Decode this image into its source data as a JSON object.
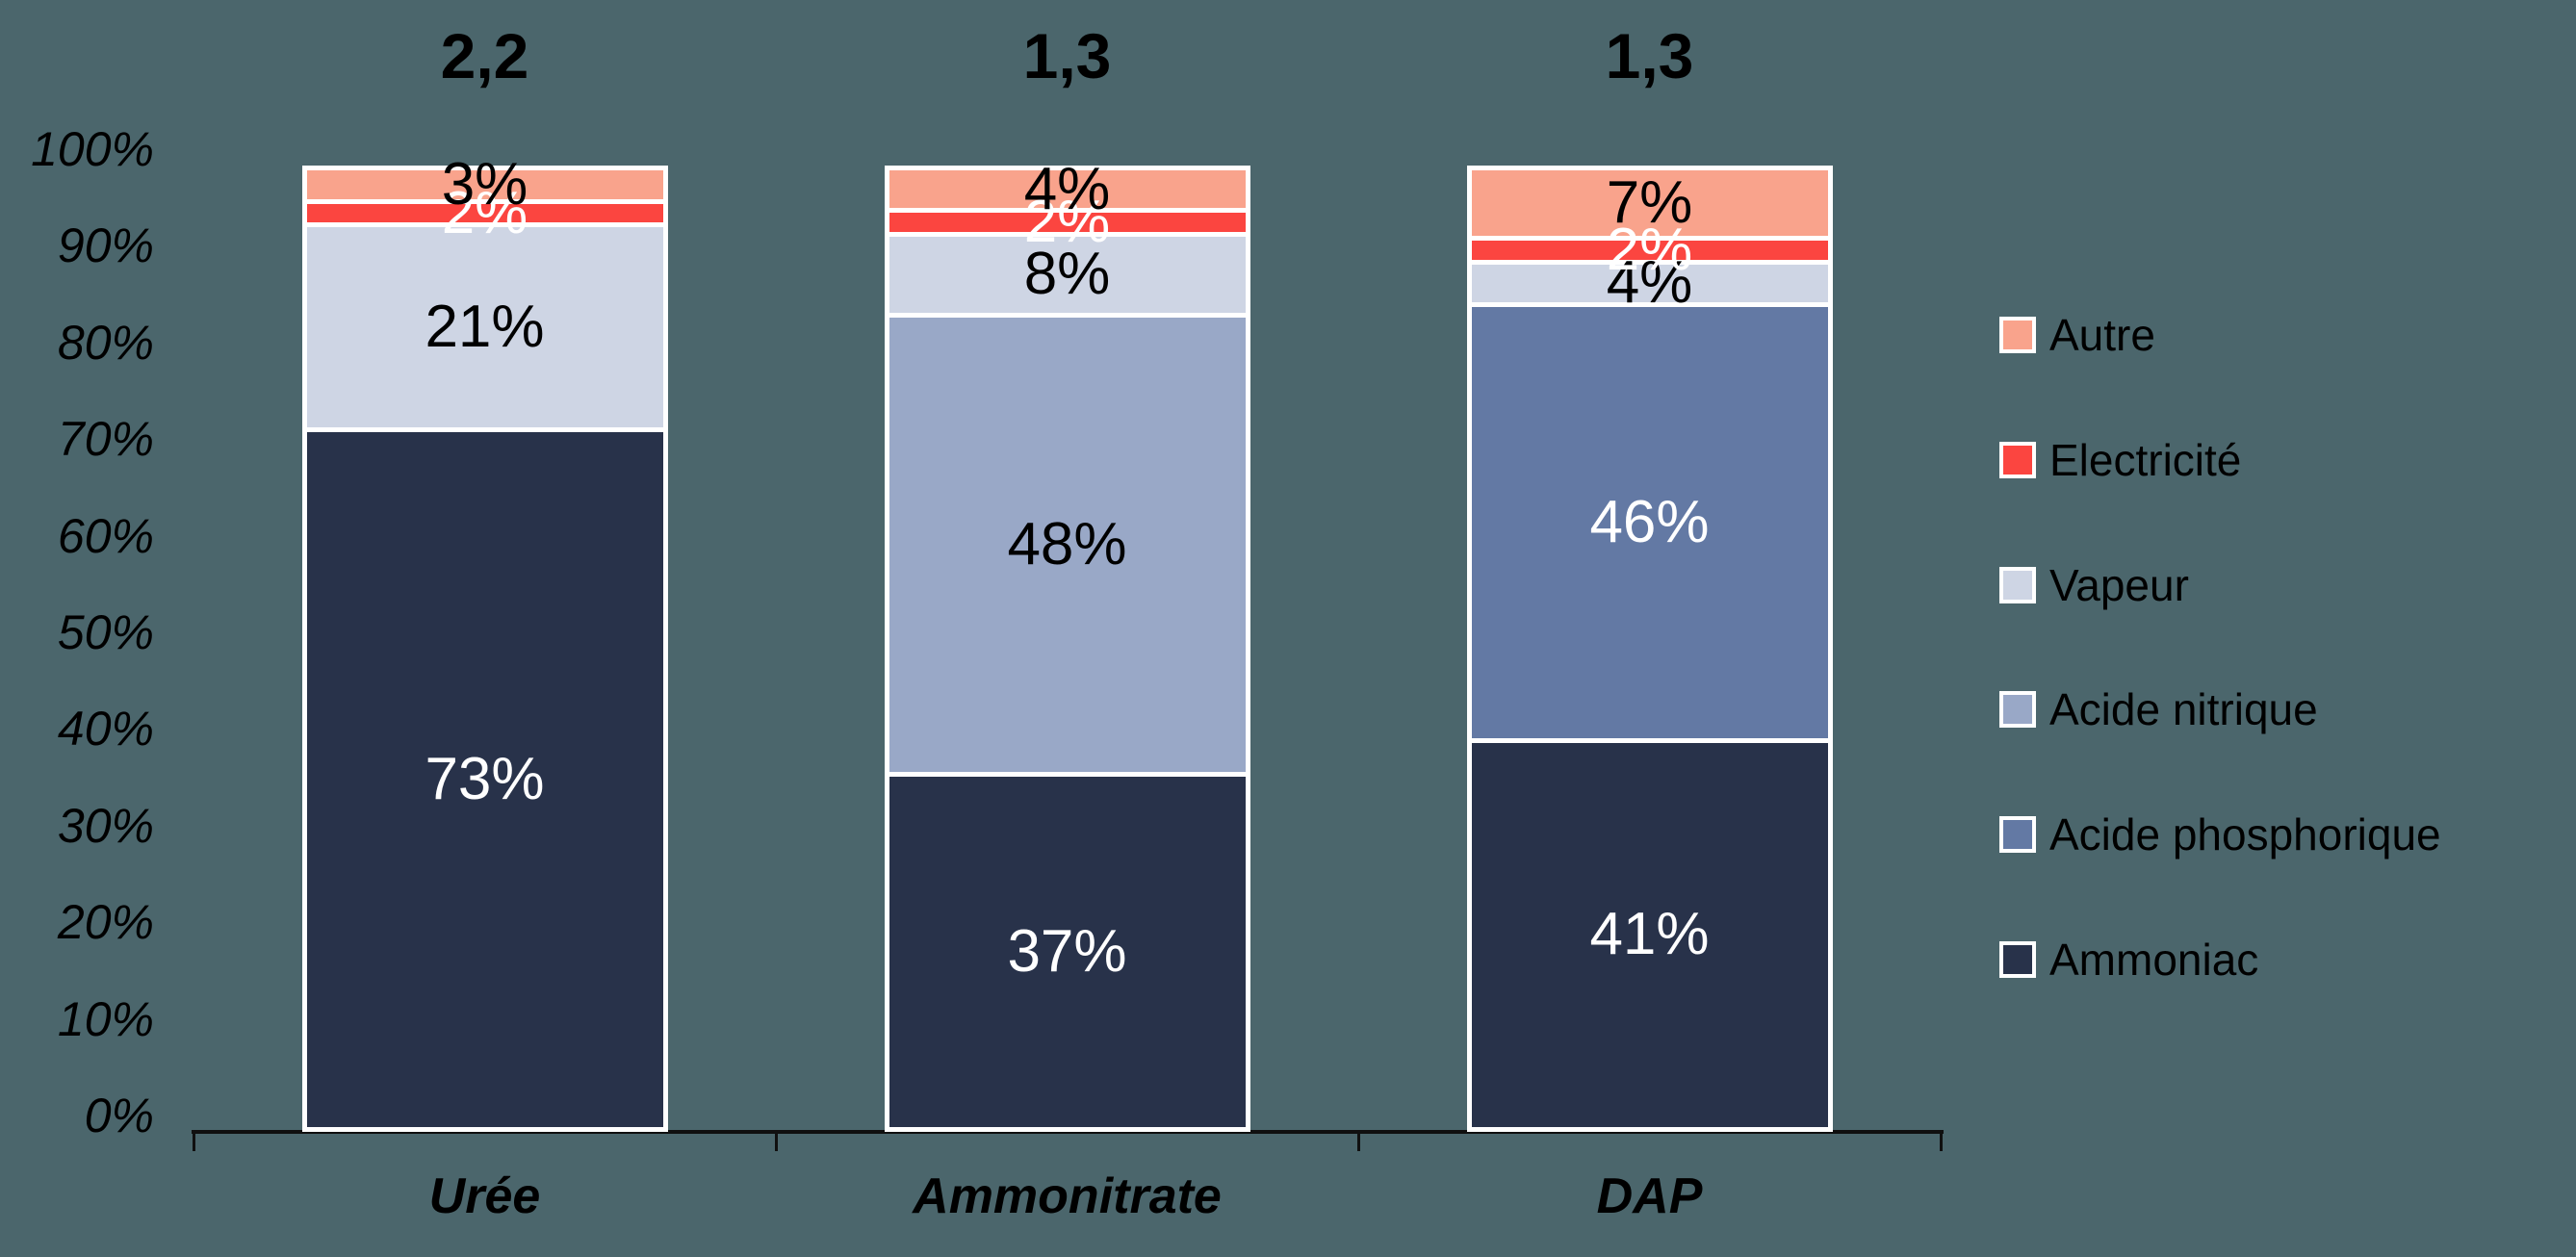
{
  "background_color": "#4B666C",
  "chart_data": {
    "type": "bar",
    "subtype": "stacked-100-percent",
    "title": "",
    "categories": [
      "Urée",
      "Ammonitrate",
      "DAP"
    ],
    "bar_totals": [
      "2,2",
      "1,3",
      "1,3"
    ],
    "unit": "%",
    "series": [
      {
        "name": "Ammoniac",
        "color": "#28324A",
        "label_color": "#FFFFFF",
        "values": [
          73,
          37,
          41
        ],
        "labels": [
          "73%",
          "37%",
          "41%"
        ]
      },
      {
        "name": "Acide phosphorique",
        "color": "#6379A4",
        "label_color": "#FFFFFF",
        "values": [
          0,
          0,
          46
        ],
        "labels": [
          "",
          "",
          "46%"
        ]
      },
      {
        "name": "Acide nitrique",
        "color": "#99A8C7",
        "label_color": "#000000",
        "values": [
          0,
          48,
          0
        ],
        "labels": [
          "",
          "48%",
          ""
        ]
      },
      {
        "name": "Vapeur",
        "color": "#CED5E4",
        "label_color": "#000000",
        "values": [
          21,
          8,
          4
        ],
        "labels": [
          "21%",
          "8%",
          "4%"
        ]
      },
      {
        "name": "Electricité",
        "color": "#FB4540",
        "label_color": "#FFFFFF",
        "values": [
          2,
          2,
          2
        ],
        "labels": [
          "2%",
          "2%",
          "2%"
        ]
      },
      {
        "name": "Autre",
        "color": "#F9A38C",
        "label_color": "#000000",
        "values": [
          3,
          4,
          7
        ],
        "labels": [
          "3%",
          "4%",
          "7%"
        ]
      }
    ],
    "y_axis": {
      "min": 0,
      "max": 100,
      "tick_step": 10,
      "tick_labels": [
        "0%",
        "10%",
        "20%",
        "30%",
        "40%",
        "50%",
        "60%",
        "70%",
        "80%",
        "90%",
        "100%"
      ]
    },
    "x_axis": {
      "line_color": "#101010",
      "tick_marks": 4
    },
    "legend": {
      "position": "right",
      "items": [
        "Autre",
        "Electricité",
        "Vapeur",
        "Acide nitrique",
        "Acide phosphorique",
        "Ammoniac"
      ]
    },
    "gridlines": false
  }
}
